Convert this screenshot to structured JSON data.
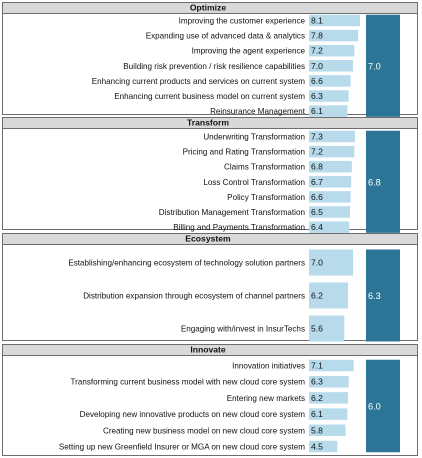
{
  "colors": {
    "bar": "#b7dbea",
    "avg_bar": "#2c7597",
    "header_bg": "#d9d9d9",
    "border": "#6d6d6d"
  },
  "chart_data": {
    "type": "bar",
    "orientation": "horizontal",
    "xlim": [
      0,
      10
    ],
    "sections": [
      {
        "name": "Optimize",
        "average": 7.0,
        "categories": [
          "Improving the customer experience",
          "Expanding use of advanced data & analytics",
          "Improving the agent experience",
          "Building risk prevention / risk resilience capabilities",
          "Enhancing current products and services on current system",
          "Enhancing current business model on current system",
          "Reinsurance Management"
        ],
        "values": [
          8.1,
          7.8,
          7.2,
          7.0,
          6.6,
          6.3,
          6.1
        ]
      },
      {
        "name": "Transform",
        "average": 6.8,
        "categories": [
          "Underwriting Transformation",
          "Pricing and Rating Transformation",
          "Claims Transformation",
          "Loss Control Transformation",
          "Policy Transformation",
          "Distribution Management Transformation",
          "Billing and Payments Transformation"
        ],
        "values": [
          7.3,
          7.2,
          6.8,
          6.7,
          6.6,
          6.5,
          6.4
        ]
      },
      {
        "name": "Ecosystem",
        "average": 6.3,
        "categories": [
          "Establishing/enhancing ecosystem of technology solution partners",
          "Distribution expansion through ecosystem of channel partners",
          "Engaging with/invest in InsurTechs"
        ],
        "values": [
          7.0,
          6.2,
          5.6
        ]
      },
      {
        "name": "Innovate",
        "average": 6.0,
        "categories": [
          "Innovation initiatives",
          "Transforming current business model with new cloud core system",
          "Entering new markets",
          "Developing new innovative products on new cloud core system",
          "Creating new business model on new cloud core system",
          "Setting up new Greenfield Insurer or MGA on new cloud core system"
        ],
        "values": [
          7.1,
          6.3,
          6.2,
          6.1,
          5.8,
          4.5
        ]
      }
    ]
  }
}
